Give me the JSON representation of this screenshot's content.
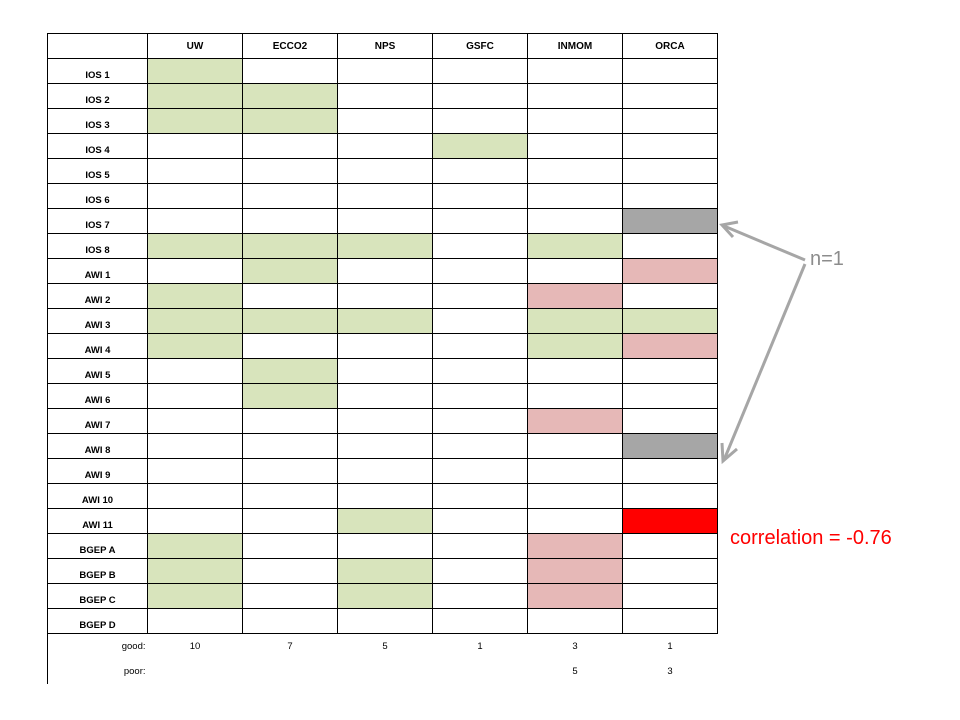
{
  "colors": {
    "good": "#d8e4bc",
    "poor": "#e6b8b7",
    "gray": "#a6a6a6",
    "red": "#ff0000",
    "empty": "#ffffff",
    "arrow": "#a6a6a6"
  },
  "columns": [
    "UW",
    "ECCO2",
    "NPS",
    "GSFC",
    "INMOM",
    "ORCA"
  ],
  "rows": [
    {
      "label": "IOS 1",
      "cells": [
        "good",
        "",
        "",
        "",
        "",
        ""
      ]
    },
    {
      "label": "IOS 2",
      "cells": [
        "good",
        "good",
        "",
        "",
        "",
        ""
      ]
    },
    {
      "label": "IOS 3",
      "cells": [
        "good",
        "good",
        "",
        "",
        "",
        ""
      ]
    },
    {
      "label": "IOS 4",
      "cells": [
        "",
        "",
        "",
        "good",
        "",
        ""
      ]
    },
    {
      "label": "IOS 5",
      "cells": [
        "",
        "",
        "",
        "",
        "",
        ""
      ]
    },
    {
      "label": "IOS 6",
      "cells": [
        "",
        "",
        "",
        "",
        "",
        ""
      ]
    },
    {
      "label": "IOS 7",
      "cells": [
        "",
        "",
        "",
        "",
        "",
        "gray"
      ]
    },
    {
      "label": "IOS 8",
      "cells": [
        "good",
        "good",
        "good",
        "",
        "good",
        ""
      ]
    },
    {
      "label": "AWI 1",
      "cells": [
        "",
        "good",
        "",
        "",
        "",
        "poor"
      ]
    },
    {
      "label": "AWI 2",
      "cells": [
        "good",
        "",
        "",
        "",
        "poor",
        ""
      ]
    },
    {
      "label": "AWI 3",
      "cells": [
        "good",
        "good",
        "good",
        "",
        "good",
        "good"
      ]
    },
    {
      "label": "AWI 4",
      "cells": [
        "good",
        "",
        "",
        "",
        "good",
        "poor"
      ]
    },
    {
      "label": "AWI 5",
      "cells": [
        "",
        "good",
        "",
        "",
        "",
        ""
      ]
    },
    {
      "label": "AWI 6",
      "cells": [
        "",
        "good",
        "",
        "",
        "",
        ""
      ]
    },
    {
      "label": "AWI 7",
      "cells": [
        "",
        "",
        "",
        "",
        "poor",
        ""
      ]
    },
    {
      "label": "AWI 8",
      "cells": [
        "",
        "",
        "",
        "",
        "",
        "gray"
      ]
    },
    {
      "label": "AWI 9",
      "cells": [
        "",
        "",
        "",
        "",
        "",
        ""
      ]
    },
    {
      "label": "AWI 10",
      "cells": [
        "",
        "",
        "",
        "",
        "",
        ""
      ]
    },
    {
      "label": "AWI 11",
      "cells": [
        "",
        "",
        "good",
        "",
        "",
        "red"
      ]
    },
    {
      "label": "BGEP  A",
      "cells": [
        "good",
        "",
        "",
        "",
        "poor",
        ""
      ]
    },
    {
      "label": "BGEP  B",
      "cells": [
        "good",
        "",
        "good",
        "",
        "poor",
        ""
      ]
    },
    {
      "label": "BGEP  C",
      "cells": [
        "good",
        "",
        "good",
        "",
        "poor",
        ""
      ]
    },
    {
      "label": "BGEP  D",
      "cells": [
        "",
        "",
        "",
        "",
        "",
        ""
      ]
    }
  ],
  "summary": {
    "good_label": "good:",
    "good_values": [
      "10",
      "7",
      "5",
      "1",
      "3",
      "1"
    ],
    "poor_label": "poor:",
    "poor_values": [
      "",
      "",
      "",
      "",
      "5",
      "3"
    ]
  },
  "annotations": {
    "n_label": "n=1",
    "correlation_label": "correlation = -0.76"
  }
}
